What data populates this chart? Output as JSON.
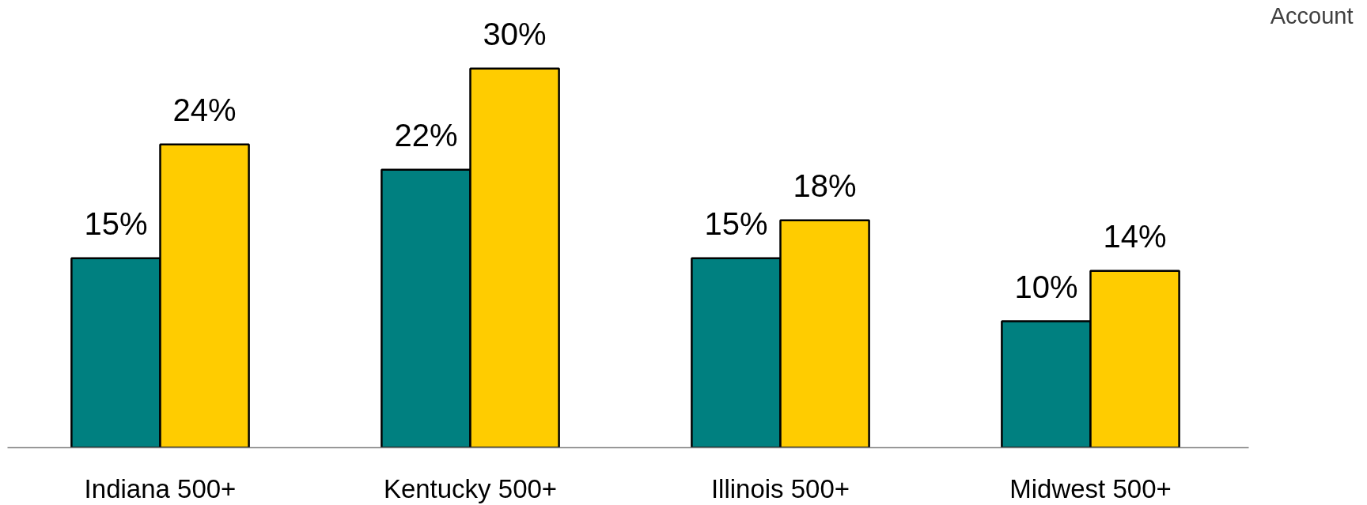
{
  "chart_data": {
    "type": "bar",
    "categories": [
      "Indiana 500+",
      "Kentucky 500+",
      "Illinois 500+",
      "Midwest 500+"
    ],
    "series": [
      {
        "color": "#008080",
        "values": [
          15,
          22,
          15,
          10
        ],
        "value_labels": [
          "15%",
          "22%",
          "15%",
          "10%"
        ]
      },
      {
        "color": "#ffcc00",
        "values": [
          24,
          30,
          18,
          14
        ],
        "value_labels": [
          "24%",
          "30%",
          "18%",
          "14%"
        ]
      }
    ],
    "grid": false,
    "tick_labels": "x",
    "annotations": [
      "Account"
    ]
  }
}
